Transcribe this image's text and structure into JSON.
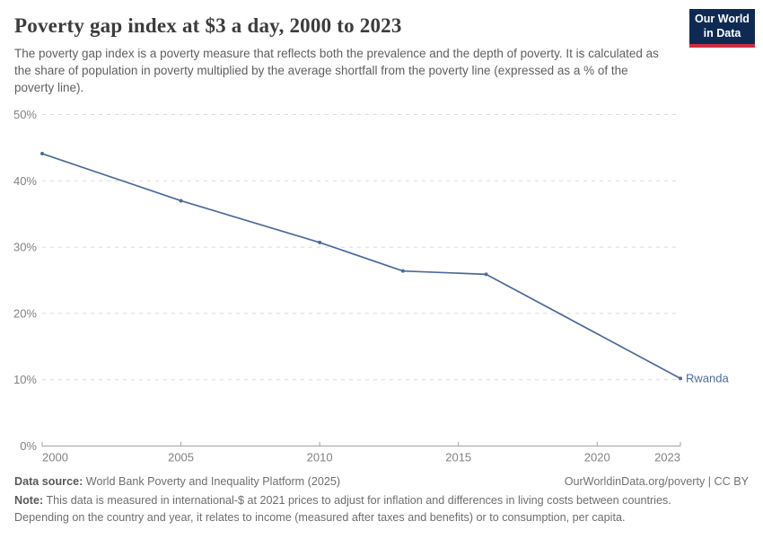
{
  "header": {
    "title": "Poverty gap index at $3 a day, 2000 to 2023",
    "subtitle": "The poverty gap index is a poverty measure that reflects both the prevalence and the depth of poverty. It is calculated as the share of population in poverty multiplied by the average shortfall from the poverty line (expressed as a % of the poverty line).",
    "logo": {
      "line1": "Our World",
      "line2": "in Data",
      "bg_color": "#0f2a52",
      "accent_color": "#cb2e43"
    }
  },
  "chart_data": {
    "type": "line",
    "title": "Poverty gap index at $3 a day, 2000 to 2023",
    "xlabel": "",
    "ylabel": "",
    "xlim": [
      2000,
      2023
    ],
    "ylim": [
      0,
      50
    ],
    "grid": "horizontal-dashed",
    "x_ticks": [
      2000,
      2005,
      2010,
      2015,
      2020,
      2023
    ],
    "y_ticks": [
      {
        "v": 0,
        "label": "0%"
      },
      {
        "v": 10,
        "label": "10%"
      },
      {
        "v": 20,
        "label": "20%"
      },
      {
        "v": 30,
        "label": "30%"
      },
      {
        "v": 40,
        "label": "40%"
      },
      {
        "v": 50,
        "label": "50%"
      }
    ],
    "series": [
      {
        "name": "Rwanda",
        "color": "#4c6a9c",
        "x": [
          2000,
          2005,
          2010,
          2013,
          2016,
          2023
        ],
        "values": [
          44.1,
          37.0,
          30.7,
          26.4,
          25.9,
          10.2
        ]
      }
    ],
    "colors": {
      "gridline": "#dadada",
      "axis": "#a3a3a3",
      "tick_label": "#828282"
    }
  },
  "footer": {
    "datasource_label": "Data source:",
    "datasource_value": " World Bank Poverty and Inequality Platform (2025)",
    "link": "OurWorldinData.org/poverty | CC BY",
    "note_label": "Note:",
    "note_value": " This data is measured in international-$ at 2021 prices to adjust for inflation and differences in living costs between countries. Depending on the country and year, it relates to income (measured after taxes and benefits) or to consumption, per capita."
  }
}
